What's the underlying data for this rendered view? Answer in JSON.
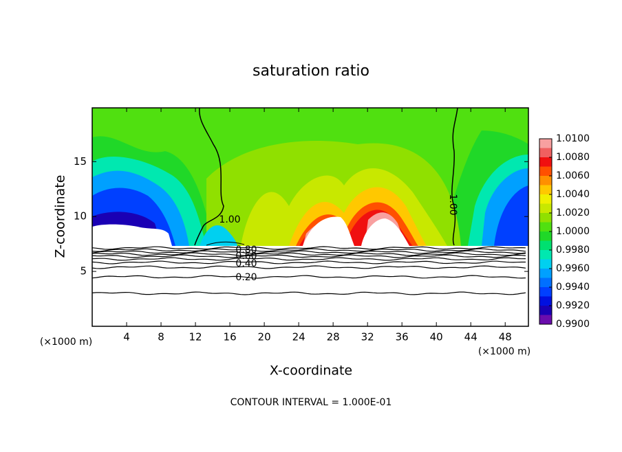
{
  "chart_data": {
    "type": "contour",
    "title": "saturation ratio",
    "x_label": "X-coordinate",
    "y_label": "Z-coordinate",
    "x_unit": "(×1000 m)",
    "footer": "CONTOUR INTERVAL = 1.000E-01",
    "xlim": [
      0,
      50.7
    ],
    "xticks": [
      4,
      8,
      12,
      16,
      20,
      24,
      28,
      32,
      36,
      40,
      44,
      48
    ],
    "ylim": [
      0,
      19.9
    ],
    "yticks": [
      5,
      10,
      15
    ],
    "contour_labels": [
      {
        "value": 1,
        "label": "1.00"
      },
      {
        "value": 1,
        "label": "1.00"
      },
      {
        "value": 0.8,
        "label": "0.80"
      },
      {
        "value": 0.6,
        "label": "0.60"
      },
      {
        "value": 0.4,
        "label": "0.40"
      },
      {
        "value": 0.2,
        "label": "0.20"
      }
    ],
    "colorbar": {
      "lim": [
        0.99,
        1.01
      ],
      "ticks": [
        {
          "value": 0.99,
          "label": "0.9900"
        },
        {
          "value": 0.992,
          "label": "0.9920"
        },
        {
          "value": 0.994,
          "label": "0.9940"
        },
        {
          "value": 0.996,
          "label": "0.9960"
        },
        {
          "value": 0.998,
          "label": "0.9980"
        },
        {
          "value": 1.0,
          "label": "1.0000"
        },
        {
          "value": 1.002,
          "label": "1.0020"
        },
        {
          "value": 1.004,
          "label": "1.0040"
        },
        {
          "value": 1.006,
          "label": "1.0060"
        },
        {
          "value": 1.008,
          "label": "1.0080"
        },
        {
          "value": 1.01,
          "label": "1.0100"
        }
      ],
      "colors": [
        "#6a0dad",
        "#1a00b4",
        "#0010e0",
        "#0040ff",
        "#0070ff",
        "#00a0ff",
        "#00d0f0",
        "#00e8b0",
        "#00e070",
        "#20d828",
        "#50e010",
        "#90e000",
        "#c8e800",
        "#f0f000",
        "#ffc800",
        "#ff9000",
        "#ff5000",
        "#f01010",
        "#f06060",
        "#f8a0a0"
      ]
    }
  }
}
